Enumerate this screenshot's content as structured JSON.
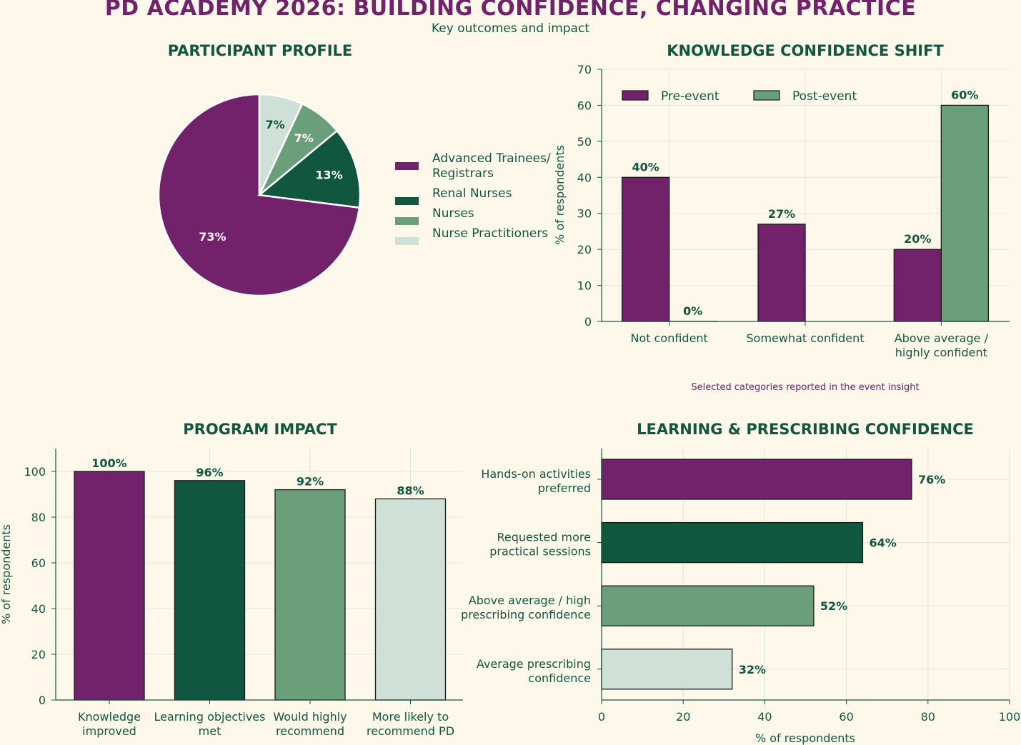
{
  "title": "PD ACADEMY 2026: BUILDING CONFIDENCE, CHANGING PRACTICE",
  "subtitle": "Key outcomes and impact",
  "colors": {
    "purple": "#72226b",
    "dark_green": "#115740",
    "mid_green": "#6b9f7a",
    "light": "#cfe0d9",
    "background": "#fdf8ea",
    "text": "#115740",
    "note": "#72226b"
  },
  "chart_data": [
    {
      "type": "pie",
      "title": "PARTICIPANT PROFILE",
      "slices": [
        {
          "label": "Advanced Trainees/\nRegistrars",
          "value": 73,
          "display": "73%",
          "color": "#72226b"
        },
        {
          "label": "Renal Nurses",
          "value": 13,
          "display": "13%",
          "color": "#115740"
        },
        {
          "label": "Nurses",
          "value": 7,
          "display": "7%",
          "color": "#6b9f7a"
        },
        {
          "label": "Nurse Practitioners",
          "value": 7,
          "display": "7%",
          "color": "#cfe0d9"
        }
      ],
      "legend": "right"
    },
    {
      "type": "bar",
      "title": "KNOWLEDGE CONFIDENCE SHIFT",
      "categories": [
        "Not confident",
        "Somewhat confident",
        "Above average /\nhighly confident"
      ],
      "series": [
        {
          "name": "Pre-event",
          "values": [
            40,
            27,
            20
          ],
          "labels": [
            "40%",
            "27%",
            "20%"
          ],
          "color": "#72226b"
        },
        {
          "name": "Post-event",
          "values": [
            0,
            null,
            60
          ],
          "labels": [
            "0%",
            null,
            "60%"
          ],
          "color": "#6b9f7a"
        }
      ],
      "ylabel": "% of respondents",
      "ylim": [
        0,
        70
      ],
      "yticks": [
        0,
        10,
        20,
        30,
        40,
        50,
        60,
        70
      ],
      "legend": "top-left",
      "grid": true,
      "note": "Selected categories reported in the event insight"
    },
    {
      "type": "bar",
      "title": "PROGRAM IMPACT",
      "categories": [
        "Knowledge\nimproved",
        "Learning objectives\nmet",
        "Would highly\nrecommend",
        "More likely to\nrecommend PD"
      ],
      "values": [
        100,
        96,
        92,
        88
      ],
      "labels": [
        "100%",
        "96%",
        "92%",
        "88%"
      ],
      "colors": [
        "#72226b",
        "#115740",
        "#6b9f7a",
        "#cfe0d9"
      ],
      "ylabel": "% of respondents",
      "ylim": [
        0,
        110
      ],
      "yticks": [
        0,
        20,
        40,
        60,
        80,
        100
      ],
      "grid": true
    },
    {
      "type": "bar",
      "orientation": "horizontal",
      "title": "LEARNING & PRESCRIBING CONFIDENCE",
      "categories": [
        "Hands-on activities\npreferred",
        "Requested more\npractical sessions",
        "Above average / high\nprescribing confidence",
        "Average prescribing\nconfidence"
      ],
      "values": [
        76,
        64,
        52,
        32
      ],
      "labels": [
        "76%",
        "64%",
        "52%",
        "32%"
      ],
      "colors": [
        "#72226b",
        "#115740",
        "#6b9f7a",
        "#cfe0d9"
      ],
      "xlabel": "% of respondents",
      "xlim": [
        0,
        100
      ],
      "xticks": [
        0,
        20,
        40,
        60,
        80,
        100
      ],
      "grid": true
    }
  ]
}
